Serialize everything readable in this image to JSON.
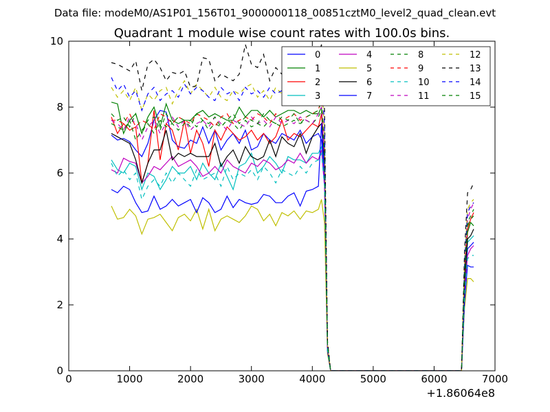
{
  "suptitle": "Data file: modeM0/AS1P01_156T01_9000000118_00851cztM0_level2_quad_clean.evt",
  "chart_data": {
    "type": "line",
    "title": "Quadrant 1 module wise count rates with 100.0s bins.",
    "xlabel": "",
    "ylabel": "",
    "x_offset_label": "+1.86064e8",
    "xlim": [
      0,
      7000
    ],
    "ylim": [
      0,
      10
    ],
    "xticks": [
      "0",
      "1000",
      "2000",
      "3000",
      "4000",
      "5000",
      "6000",
      "7000"
    ],
    "yticks": [
      "0",
      "2",
      "4",
      "6",
      "8",
      "10"
    ],
    "grid": false,
    "legend_position": "top-right",
    "legend_columns": 4,
    "x": [
      700,
      800,
      900,
      1000,
      1100,
      1200,
      1300,
      1400,
      1500,
      1600,
      1700,
      1800,
      1900,
      2000,
      2100,
      2200,
      2300,
      2400,
      2500,
      2600,
      2700,
      2800,
      2900,
      3000,
      3100,
      3200,
      3300,
      3400,
      3500,
      3600,
      3700,
      3800,
      3900,
      4000,
      4100,
      4150,
      4200,
      4250,
      4300,
      4350,
      4400,
      4500,
      4600,
      4700,
      4800,
      4900,
      5000,
      5100,
      5200,
      5300,
      5400,
      5500,
      5600,
      5700,
      5800,
      5900,
      6000,
      6100,
      6200,
      6300,
      6400,
      6450,
      6500,
      6550,
      6600,
      6650
    ],
    "series": [
      {
        "name": "0",
        "color": "#0000ff",
        "dash": "solid",
        "values": [
          7.15,
          7.0,
          7.05,
          6.95,
          6.7,
          6.5,
          6.9,
          7.6,
          7.9,
          7.85,
          7.0,
          6.8,
          6.75,
          7.0,
          6.9,
          7.4,
          6.9,
          7.3,
          6.7,
          7.0,
          7.2,
          6.9,
          7.3,
          6.7,
          6.8,
          7.2,
          7.0,
          6.9,
          7.2,
          7.1,
          7.0,
          7.3,
          6.9,
          7.1,
          7.2,
          7.0,
          6.0,
          0.6,
          0.0,
          0,
          0,
          0,
          0,
          0,
          0,
          0,
          0,
          0,
          0,
          0,
          0,
          0,
          0,
          0,
          0,
          0,
          0,
          0,
          0,
          0,
          0,
          0,
          2.5,
          3.7,
          3.8,
          3.9
        ]
      },
      {
        "name": "1",
        "color": "#008000",
        "dash": "solid",
        "values": [
          8.15,
          8.1,
          7.2,
          7.6,
          7.8,
          7.2,
          7.7,
          8.0,
          7.4,
          8.1,
          7.6,
          7.5,
          7.6,
          7.6,
          7.8,
          7.9,
          7.7,
          7.8,
          7.7,
          7.6,
          7.6,
          8.0,
          7.7,
          7.9,
          7.9,
          7.7,
          7.9,
          7.7,
          7.8,
          7.9,
          7.9,
          7.8,
          7.9,
          7.8,
          7.8,
          8.0,
          6.5,
          0.7,
          0.0,
          0,
          0,
          0,
          0,
          0,
          0,
          0,
          0,
          0,
          0,
          0,
          0,
          0,
          0,
          0,
          0,
          0,
          0,
          0,
          0,
          0,
          0,
          0,
          2.8,
          4.2,
          4.5,
          4.4
        ]
      },
      {
        "name": "2",
        "color": "#ff0000",
        "dash": "solid",
        "values": [
          7.7,
          7.2,
          7.5,
          7.3,
          7.4,
          5.7,
          6.3,
          7.9,
          6.4,
          7.5,
          7.3,
          6.7,
          7.6,
          6.6,
          7.3,
          6.9,
          6.2,
          7.3,
          7.0,
          7.4,
          7.2,
          7.0,
          7.1,
          7.3,
          7.0,
          7.2,
          6.9,
          7.1,
          7.6,
          7.0,
          7.2,
          7.1,
          7.3,
          7.5,
          7.4,
          7.8,
          6.4,
          0.7,
          0.0,
          0,
          0,
          0,
          0,
          0,
          0,
          0,
          0,
          0,
          0,
          0,
          0,
          0,
          0,
          0,
          0,
          0,
          0,
          0,
          0,
          0,
          0,
          0,
          3.0,
          4.3,
          4.6,
          4.8
        ]
      },
      {
        "name": "3",
        "color": "#00bfbf",
        "dash": "solid",
        "values": [
          6.4,
          6.1,
          6.0,
          6.3,
          6.2,
          5.5,
          6.0,
          5.9,
          5.5,
          5.8,
          6.2,
          6.0,
          6.0,
          6.2,
          5.8,
          6.3,
          6.0,
          5.8,
          6.3,
          5.9,
          5.5,
          6.2,
          6.3,
          6.6,
          6.0,
          6.2,
          6.5,
          6.3,
          6.0,
          6.5,
          6.4,
          6.4,
          6.3,
          6.6,
          6.6,
          6.8,
          5.8,
          0.6,
          0.0,
          0,
          0,
          0,
          0,
          0,
          0,
          0,
          0,
          0,
          0,
          0,
          0,
          0,
          0,
          0,
          0,
          0,
          0,
          0,
          0,
          0,
          0,
          0,
          2.6,
          3.9,
          4.0,
          4.1
        ]
      },
      {
        "name": "4",
        "color": "#bf00bf",
        "dash": "solid",
        "values": [
          6.1,
          6.0,
          6.45,
          6.35,
          6.3,
          5.7,
          5.9,
          6.2,
          6.1,
          6.3,
          6.5,
          6.2,
          6.3,
          6.4,
          6.2,
          5.9,
          6.0,
          6.2,
          6.0,
          6.4,
          6.2,
          6.1,
          6.0,
          6.3,
          6.2,
          6.4,
          6.3,
          6.1,
          6.2,
          6.4,
          6.3,
          6.6,
          6.3,
          6.5,
          6.4,
          6.7,
          5.6,
          0.6,
          0.0,
          0,
          0,
          0,
          0,
          0,
          0,
          0,
          0,
          0,
          0,
          0,
          0,
          0,
          0,
          0,
          0,
          0,
          0,
          0,
          0,
          0,
          0,
          0,
          2.4,
          3.5,
          3.7,
          3.8
        ]
      },
      {
        "name": "5",
        "color": "#bfbf00",
        "dash": "solid",
        "values": [
          5.0,
          4.6,
          4.65,
          4.9,
          4.7,
          4.15,
          4.6,
          4.65,
          4.75,
          4.5,
          4.25,
          4.65,
          4.75,
          4.55,
          4.9,
          4.3,
          4.9,
          4.25,
          4.6,
          4.7,
          4.6,
          4.5,
          4.7,
          5.0,
          4.9,
          4.55,
          4.75,
          4.4,
          4.8,
          4.7,
          4.85,
          4.6,
          4.85,
          4.8,
          4.9,
          5.2,
          4.5,
          0.5,
          0.0,
          0,
          0,
          0,
          0,
          0,
          0,
          0,
          0,
          0,
          0,
          0,
          0,
          0,
          0,
          0,
          0,
          0,
          0,
          0,
          0,
          0,
          0,
          0,
          1.9,
          2.8,
          2.8,
          2.7
        ]
      },
      {
        "name": "6",
        "color": "#000000",
        "dash": "solid",
        "values": [
          7.2,
          7.1,
          7.0,
          6.9,
          6.4,
          5.7,
          6.3,
          6.7,
          6.7,
          7.3,
          6.4,
          6.6,
          6.5,
          6.6,
          6.5,
          6.5,
          6.5,
          6.9,
          6.2,
          6.5,
          6.7,
          6.3,
          6.8,
          6.5,
          6.4,
          6.5,
          7.0,
          6.5,
          7.1,
          6.9,
          6.8,
          7.2,
          6.6,
          7.1,
          7.4,
          7.5,
          6.3,
          0.7,
          0.0,
          0,
          0,
          0,
          0,
          0,
          0,
          0,
          0,
          0,
          0,
          0,
          0,
          0,
          0,
          0,
          0,
          0,
          0,
          0,
          0,
          0,
          0,
          0,
          2.7,
          4.0,
          4.1,
          4.3
        ]
      },
      {
        "name": "7",
        "color": "#0000ff",
        "dash": "solid",
        "values": [
          5.5,
          5.4,
          5.6,
          5.5,
          5.1,
          4.8,
          4.85,
          5.3,
          4.9,
          5.0,
          5.2,
          5.0,
          5.1,
          5.2,
          4.8,
          5.25,
          5.1,
          4.8,
          4.9,
          5.3,
          4.95,
          5.2,
          5.1,
          5.05,
          5.1,
          5.35,
          5.3,
          5.1,
          5.1,
          5.3,
          5.4,
          5.0,
          5.45,
          5.5,
          5.6,
          7.5,
          5.9,
          0.6,
          0.0,
          0,
          0,
          0,
          0,
          0,
          0,
          0,
          0,
          0,
          0,
          0,
          0,
          0,
          0,
          0,
          0,
          0,
          0,
          0,
          0,
          0,
          0,
          0,
          2.1,
          3.2,
          3.15,
          3.15
        ]
      },
      {
        "name": "8",
        "color": "#008000",
        "dash": "dashed",
        "values": [
          7.5,
          7.4,
          7.3,
          7.6,
          7.0,
          7.3,
          7.5,
          7.2,
          7.6,
          7.4,
          7.5,
          7.3,
          7.5,
          7.6,
          7.4,
          7.6,
          7.3,
          7.5,
          7.4,
          7.6,
          7.5,
          7.3,
          7.6,
          7.4,
          7.5,
          7.4,
          7.6,
          7.5,
          7.4,
          7.5,
          7.6,
          7.5,
          7.6,
          7.5,
          7.7,
          7.9,
          6.4,
          0.7,
          0.0,
          0,
          0,
          0,
          0,
          0,
          0,
          0,
          0,
          0,
          0,
          0,
          0,
          0,
          0,
          0,
          0,
          0,
          0,
          0,
          0,
          0,
          0,
          0,
          2.9,
          4.4,
          4.6,
          4.7
        ]
      },
      {
        "name": "9",
        "color": "#ff0000",
        "dash": "dashed",
        "values": [
          7.6,
          7.6,
          7.5,
          7.8,
          7.4,
          7.6,
          7.5,
          7.3,
          7.8,
          7.7,
          7.5,
          7.7,
          7.6,
          7.5,
          7.8,
          7.7,
          7.6,
          7.4,
          7.7,
          7.8,
          7.5,
          7.6,
          7.7,
          7.6,
          7.8,
          7.7,
          7.5,
          7.8,
          7.6,
          7.7,
          7.8,
          7.6,
          7.7,
          7.8,
          7.9,
          8.3,
          6.7,
          0.8,
          0.0,
          0,
          0,
          0,
          0,
          0,
          0,
          0,
          0,
          0,
          0,
          0,
          0,
          0,
          0,
          0,
          0,
          0,
          0,
          0,
          0,
          0,
          0,
          0,
          3.2,
          4.8,
          5.0,
          5.1
        ]
      },
      {
        "name": "10",
        "color": "#00bfbf",
        "dash": "dashed",
        "values": [
          6.3,
          5.9,
          6.1,
          5.8,
          6.0,
          5.2,
          5.6,
          5.8,
          5.6,
          6.0,
          5.7,
          6.0,
          5.8,
          5.6,
          6.1,
          5.8,
          5.9,
          6.0,
          5.6,
          6.2,
          5.8,
          6.0,
          5.9,
          6.1,
          5.8,
          6.2,
          6.0,
          5.7,
          6.1,
          6.0,
          5.9,
          6.2,
          6.0,
          6.3,
          6.4,
          6.6,
          5.6,
          0.6,
          0.0,
          0,
          0,
          0,
          0,
          0,
          0,
          0,
          0,
          0,
          0,
          0,
          0,
          0,
          0,
          0,
          0,
          0,
          0,
          0,
          0,
          0,
          0,
          0,
          2.3,
          3.4,
          3.5,
          3.5
        ]
      },
      {
        "name": "11",
        "color": "#bf00bf",
        "dash": "dashed",
        "values": [
          7.6,
          7.5,
          7.3,
          7.7,
          7.5,
          7.0,
          7.4,
          7.6,
          7.2,
          7.5,
          7.7,
          7.4,
          7.6,
          7.3,
          7.5,
          7.6,
          7.4,
          7.7,
          7.5,
          7.3,
          7.6,
          7.5,
          7.4,
          7.7,
          7.5,
          7.6,
          7.4,
          7.7,
          7.5,
          7.6,
          7.5,
          7.7,
          7.6,
          7.5,
          7.8,
          8.0,
          6.5,
          0.7,
          0.0,
          0,
          0,
          0,
          0,
          0,
          0,
          0,
          0,
          0,
          0,
          0,
          0,
          0,
          0,
          0,
          0,
          0,
          0,
          0,
          0,
          0,
          0,
          0,
          3.1,
          4.6,
          4.9,
          5.1
        ]
      },
      {
        "name": "12",
        "color": "#bfbf00",
        "dash": "dashed",
        "values": [
          8.6,
          8.3,
          8.5,
          8.2,
          8.6,
          7.9,
          8.4,
          8.2,
          8.5,
          8.6,
          8.1,
          8.5,
          8.8,
          8.4,
          8.7,
          8.5,
          8.3,
          8.6,
          8.3,
          8.2,
          8.5,
          8.4,
          8.6,
          8.7,
          8.3,
          8.5,
          8.2,
          8.6,
          8.4,
          8.5,
          8.6,
          8.3,
          8.5,
          8.7,
          8.6,
          9.0,
          7.2,
          0.8,
          0.0,
          0,
          0,
          0,
          0,
          0,
          0,
          0,
          0,
          0,
          0,
          0,
          0,
          0,
          0,
          0,
          0,
          0,
          0,
          0,
          0,
          0,
          0,
          0,
          3.3,
          4.9,
          5.1,
          5.2
        ]
      },
      {
        "name": "13",
        "color": "#000000",
        "dash": "dashed",
        "values": [
          9.35,
          9.3,
          9.2,
          9.1,
          9.4,
          8.5,
          9.3,
          9.45,
          9.2,
          8.8,
          9.05,
          9.0,
          9.1,
          8.6,
          8.65,
          9.5,
          9.45,
          8.8,
          9.0,
          8.9,
          8.8,
          9.0,
          9.9,
          9.3,
          9.2,
          9.6,
          8.8,
          9.2,
          9.0,
          9.3,
          9.1,
          9.4,
          9.3,
          9.4,
          9.5,
          9.9,
          7.9,
          0.9,
          0.0,
          0,
          0,
          0,
          0,
          0,
          0,
          0,
          0,
          0,
          0,
          0,
          0,
          0,
          0,
          0,
          0,
          0,
          0,
          0,
          0,
          0,
          0,
          0,
          3.6,
          5.4,
          5.5,
          5.7
        ]
      },
      {
        "name": "14",
        "color": "#0000ff",
        "dash": "dashed",
        "values": [
          8.9,
          8.5,
          8.7,
          8.3,
          8.5,
          7.9,
          8.4,
          8.6,
          8.2,
          8.4,
          8.5,
          8.3,
          8.7,
          8.4,
          8.6,
          8.5,
          8.3,
          8.2,
          8.6,
          8.4,
          8.5,
          8.2,
          8.6,
          8.4,
          8.5,
          8.3,
          8.6,
          8.4,
          8.5,
          8.7,
          8.4,
          8.6,
          8.5,
          8.6,
          8.7,
          9.1,
          7.4,
          0.8,
          0.0,
          0,
          0,
          0,
          0,
          0,
          0,
          0,
          0,
          0,
          0,
          0,
          0,
          0,
          0,
          0,
          0,
          0,
          0,
          0,
          0,
          0,
          0,
          0,
          3.2,
          4.8,
          5.0,
          5.1
        ]
      },
      {
        "name": "15",
        "color": "#008000",
        "dash": "dashed",
        "values": [
          7.8,
          7.6,
          7.7,
          7.4,
          7.8,
          7.2,
          7.6,
          7.7,
          7.3,
          7.8,
          7.5,
          7.7,
          7.6,
          7.4,
          7.8,
          7.6,
          7.5,
          7.7,
          7.4,
          7.6,
          7.8,
          7.5,
          7.7,
          7.6,
          7.5,
          7.8,
          7.6,
          7.5,
          7.7,
          7.6,
          7.8,
          7.5,
          7.7,
          7.8,
          7.9,
          8.2,
          6.6,
          0.8,
          0.0,
          0,
          0,
          0,
          0,
          0,
          0,
          0,
          0,
          0,
          0,
          0,
          0,
          0,
          0,
          0,
          0,
          0,
          0,
          0,
          0,
          0,
          0,
          0,
          3.0,
          4.5,
          4.7,
          4.9
        ]
      }
    ]
  }
}
